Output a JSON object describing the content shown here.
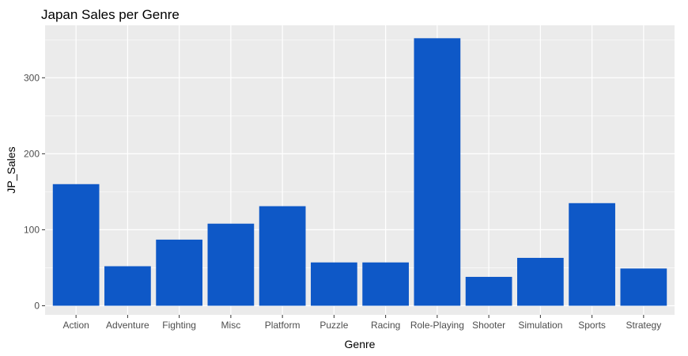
{
  "chart_data": {
    "type": "bar",
    "title": "Japan Sales per Genre",
    "xlabel": "Genre",
    "ylabel": "JP_Sales",
    "categories": [
      "Action",
      "Adventure",
      "Fighting",
      "Misc",
      "Platform",
      "Puzzle",
      "Racing",
      "Role-Playing",
      "Shooter",
      "Simulation",
      "Sports",
      "Strategy"
    ],
    "values": [
      160,
      52,
      87,
      108,
      131,
      57,
      57,
      352,
      38,
      63,
      135,
      49
    ],
    "ylim": [
      -12,
      369
    ],
    "yticks": [
      0,
      100,
      200,
      300
    ],
    "ytick_labels": [
      "0",
      "100",
      "200",
      "300"
    ],
    "grid": true,
    "legend": "none",
    "colors": {
      "bar": "#0e58c7",
      "panel": "#ebebeb",
      "grid": "#ffffff",
      "tick_text": "#4d4d4d",
      "text": "#000000"
    }
  }
}
